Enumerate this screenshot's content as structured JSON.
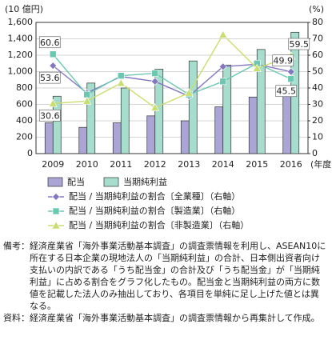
{
  "chart_data": {
    "type": "combo",
    "y_label": "(10 億円)",
    "y2_label": "(%)",
    "x_label": "(年度)",
    "categories": [
      "2009",
      "2010",
      "2011",
      "2012",
      "2013",
      "2014",
      "2015",
      "2016"
    ],
    "ylim": [
      0,
      1600
    ],
    "yticks": [
      0,
      200,
      400,
      600,
      800,
      {
        "value": 1000,
        "label": "1,000"
      },
      {
        "value": 1200,
        "label": "1,200"
      },
      {
        "value": 1400,
        "label": "1,400"
      },
      {
        "value": 1600,
        "label": "1,600"
      }
    ],
    "y2lim": [
      0,
      80
    ],
    "y2ticks": [
      0,
      10,
      20,
      30,
      40,
      50,
      60,
      70,
      80
    ],
    "grid": true,
    "series": [
      {
        "name": "配当",
        "type": "bar",
        "color": "#aba5d6",
        "values": [
          375,
          320,
          375,
          460,
          400,
          570,
          690,
          730
        ]
      },
      {
        "name": "当期純利益",
        "type": "bar",
        "color": "#a6ddcc",
        "values": [
          700,
          860,
          800,
          1030,
          1130,
          1080,
          1270,
          1480
        ]
      },
      {
        "name": "配当 / 当期純利益の割合〔全業種〕（右軸）",
        "type": "line",
        "marker": "diamond",
        "axis": "y2",
        "color": "#8378bf",
        "values": [
          53.6,
          37,
          47,
          44,
          35,
          53,
          54.5,
          49.9
        ],
        "value_labels": [
          "53.6",
          null,
          null,
          null,
          null,
          null,
          null,
          "49.9"
        ]
      },
      {
        "name": "配当 / 当期純利益の割合〔製造業〕（右軸）",
        "type": "line",
        "marker": "square",
        "axis": "y2",
        "color": "#6cc7b1",
        "values": [
          60.6,
          36,
          47.5,
          49,
          36,
          44,
          55,
          45.5
        ],
        "value_labels": [
          "60.6",
          null,
          null,
          null,
          null,
          null,
          null,
          "45.5"
        ]
      },
      {
        "name": "配当 / 当期純利益の割合〔非製造業〕（右軸）",
        "type": "line",
        "marker": "triangle",
        "axis": "y2",
        "color": "#c9de70",
        "values": [
          30.6,
          32,
          43,
          28,
          37,
          72.5,
          52,
          59.5
        ],
        "value_labels": [
          "30.6",
          null,
          null,
          null,
          null,
          null,
          null,
          "59.5"
        ]
      }
    ]
  },
  "notes": [
    {
      "label": "備考：",
      "text": "経済産業省「海外事業活動基本調査」の調査票情報を利用し、ASEAN10に所在する日本企業の現地法人の「当期純利益」の合計、日本側出資者向け支払いの内訳である「うち配当金」の合計及び「うち配当金」が「当期純利益」に占める割合をグラフ化したもの。配当金と当期純利益の両方に数値を記載した法人のみ抽出しており、各項目を単純に足し上げた値とは異なる。"
    },
    {
      "label": "資料：",
      "text": "経済産業省「海外事業活動基本調査」の調査票情報から再集計して作成。"
    }
  ]
}
